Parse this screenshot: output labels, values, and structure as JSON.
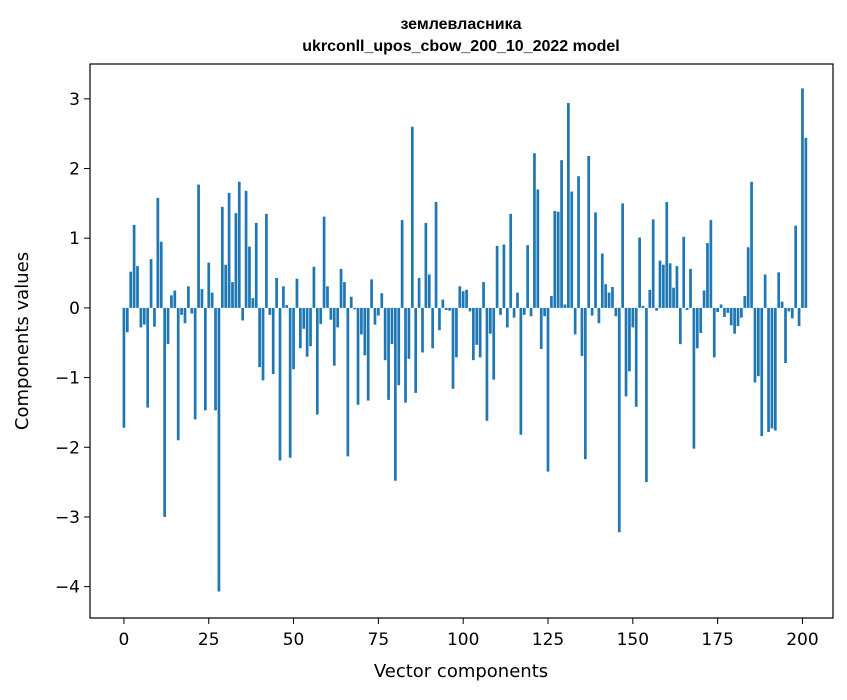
{
  "chart_data": {
    "type": "bar",
    "title": "землевласника",
    "subtitle": "ukrconll_upos_cbow_200_10_2022 model",
    "xlabel": "Vector components",
    "ylabel": "Components values",
    "xlim": [
      -10,
      209
    ],
    "ylim": [
      -4.45,
      3.5
    ],
    "xticks": [
      0,
      25,
      50,
      75,
      100,
      125,
      150,
      175,
      200
    ],
    "yticks": [
      -4,
      -3,
      -2,
      -1,
      0,
      1,
      2,
      3
    ],
    "bar_color": "#1f77b4",
    "values": [
      -1.72,
      -0.35,
      0.52,
      1.19,
      0.6,
      -0.28,
      -0.24,
      -1.43,
      0.7,
      -0.27,
      1.58,
      0.95,
      -3.0,
      -0.52,
      0.18,
      0.25,
      -1.9,
      -0.1,
      -0.22,
      0.31,
      -0.08,
      -1.6,
      1.77,
      0.27,
      -1.47,
      0.65,
      0.22,
      -1.47,
      -4.07,
      1.45,
      0.62,
      1.65,
      0.37,
      1.36,
      1.81,
      -0.18,
      1.68,
      0.88,
      0.14,
      1.22,
      -0.85,
      -1.04,
      1.35,
      -0.1,
      -0.95,
      0.43,
      -2.19,
      0.31,
      0.04,
      -2.15,
      -0.88,
      0.42,
      -0.58,
      -0.3,
      -0.7,
      -0.55,
      0.59,
      -1.53,
      -0.23,
      1.31,
      0.31,
      -0.17,
      -0.83,
      -0.28,
      0.56,
      0.37,
      -2.13,
      0.16,
      -0.02,
      -1.39,
      -0.38,
      -0.68,
      -1.33,
      0.41,
      -0.24,
      -0.11,
      0.21,
      -0.75,
      -1.32,
      -0.52,
      -2.48,
      -1.11,
      1.26,
      -1.36,
      -0.73,
      2.6,
      -1.22,
      0.43,
      -0.64,
      1.22,
      0.48,
      -0.58,
      1.52,
      -0.32,
      0.12,
      -0.03,
      -0.04,
      -1.16,
      -0.71,
      0.31,
      0.24,
      0.26,
      -0.05,
      -0.75,
      -0.53,
      -0.71,
      0.37,
      -1.62,
      -0.37,
      -1.03,
      0.89,
      -0.1,
      0.91,
      -0.28,
      1.35,
      -0.14,
      0.22,
      -1.82,
      -0.1,
      0.9,
      -0.12,
      2.22,
      1.7,
      -0.59,
      -0.12,
      -2.35,
      0.17,
      1.39,
      1.38,
      2.12,
      0.05,
      2.94,
      1.67,
      -0.38,
      1.89,
      -0.69,
      -2.17,
      2.18,
      -0.11,
      1.37,
      -0.22,
      0.78,
      0.34,
      0.22,
      0.3,
      -0.12,
      -3.22,
      1.5,
      -1.27,
      -0.91,
      -0.28,
      -1.42,
      1.01,
      0.03,
      -2.5,
      0.26,
      1.27,
      -0.04,
      0.68,
      0.62,
      1.52,
      0.64,
      0.29,
      0.6,
      -0.52,
      1.02,
      -0.03,
      0.56,
      -2.02,
      -0.58,
      -0.36,
      0.25,
      0.93,
      1.26,
      -0.71,
      -0.06,
      0.05,
      -0.13,
      -0.07,
      -0.25,
      -0.37,
      -0.26,
      -0.14,
      0.17,
      0.87,
      1.81,
      -1.07,
      -0.98,
      -1.84,
      0.48,
      -1.78,
      -1.73,
      -1.76,
      0.51,
      0.09,
      -0.79,
      -0.05,
      -0.15,
      1.18,
      -0.26,
      3.15,
      2.44
    ]
  }
}
